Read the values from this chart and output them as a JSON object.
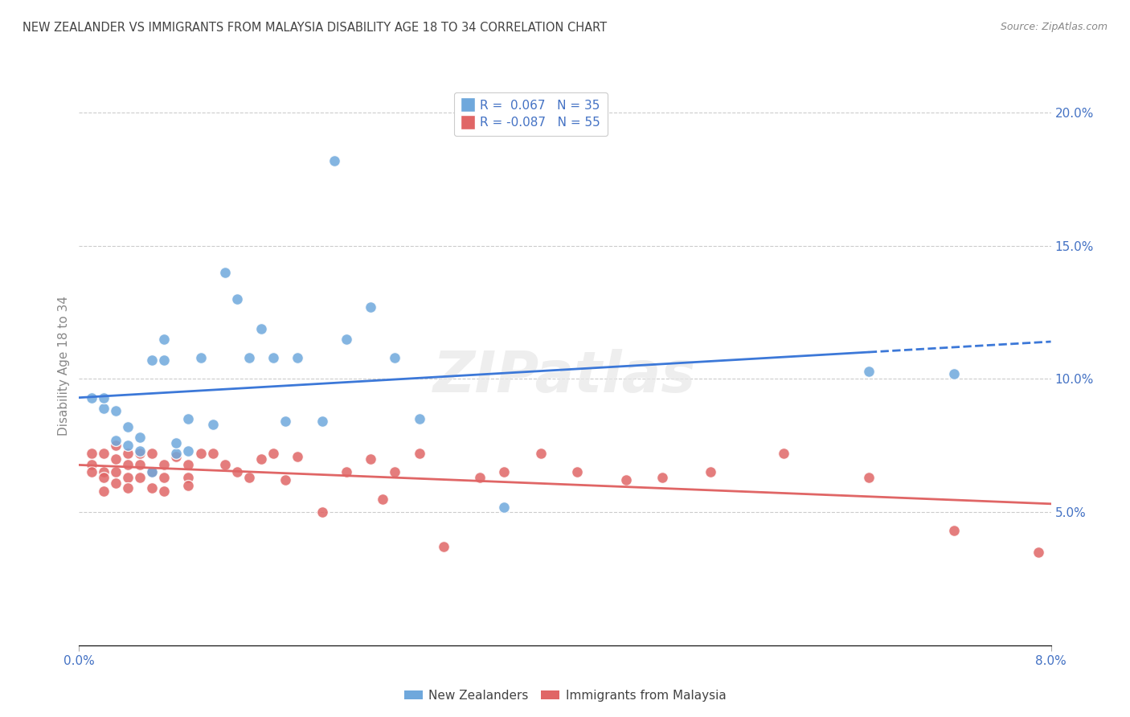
{
  "title": "NEW ZEALANDER VS IMMIGRANTS FROM MALAYSIA DISABILITY AGE 18 TO 34 CORRELATION CHART",
  "source": "Source: ZipAtlas.com",
  "ylabel": "Disability Age 18 to 34",
  "xmin": 0.0,
  "xmax": 0.08,
  "ymin": 0.0,
  "ymax": 0.21,
  "yticks": [
    0.05,
    0.1,
    0.15,
    0.2
  ],
  "ytick_labels": [
    "5.0%",
    "10.0%",
    "15.0%",
    "20.0%"
  ],
  "xtick_left_label": "0.0%",
  "xtick_right_label": "8.0%",
  "legend_r1": "R =  0.067",
  "legend_n1": "N = 35",
  "legend_r2": "R = -0.087",
  "legend_n2": "N = 55",
  "legend_label1": "New Zealanders",
  "legend_label2": "Immigrants from Malaysia",
  "color_blue": "#6fa8dc",
  "color_pink": "#e06666",
  "line_color_blue": "#3c78d8",
  "line_color_pink": "#e06666",
  "nz_x": [
    0.001,
    0.002,
    0.002,
    0.003,
    0.003,
    0.004,
    0.004,
    0.005,
    0.005,
    0.006,
    0.006,
    0.007,
    0.007,
    0.008,
    0.008,
    0.009,
    0.009,
    0.01,
    0.011,
    0.012,
    0.013,
    0.014,
    0.015,
    0.016,
    0.017,
    0.018,
    0.02,
    0.021,
    0.022,
    0.024,
    0.026,
    0.028,
    0.035,
    0.065,
    0.072
  ],
  "nz_y": [
    0.093,
    0.089,
    0.093,
    0.077,
    0.088,
    0.075,
    0.082,
    0.078,
    0.073,
    0.107,
    0.065,
    0.115,
    0.107,
    0.072,
    0.076,
    0.073,
    0.085,
    0.108,
    0.083,
    0.14,
    0.13,
    0.108,
    0.119,
    0.108,
    0.084,
    0.108,
    0.084,
    0.182,
    0.115,
    0.127,
    0.108,
    0.085,
    0.052,
    0.103,
    0.102
  ],
  "my_x": [
    0.001,
    0.001,
    0.001,
    0.002,
    0.002,
    0.002,
    0.002,
    0.003,
    0.003,
    0.003,
    0.003,
    0.004,
    0.004,
    0.004,
    0.004,
    0.005,
    0.005,
    0.005,
    0.006,
    0.006,
    0.006,
    0.007,
    0.007,
    0.007,
    0.008,
    0.009,
    0.009,
    0.009,
    0.01,
    0.011,
    0.012,
    0.013,
    0.014,
    0.015,
    0.016,
    0.017,
    0.018,
    0.02,
    0.022,
    0.024,
    0.025,
    0.026,
    0.028,
    0.03,
    0.033,
    0.035,
    0.038,
    0.041,
    0.045,
    0.048,
    0.052,
    0.058,
    0.065,
    0.072,
    0.079
  ],
  "my_y": [
    0.072,
    0.068,
    0.065,
    0.072,
    0.065,
    0.063,
    0.058,
    0.075,
    0.07,
    0.065,
    0.061,
    0.072,
    0.068,
    0.063,
    0.059,
    0.072,
    0.068,
    0.063,
    0.072,
    0.065,
    0.059,
    0.068,
    0.063,
    0.058,
    0.071,
    0.068,
    0.063,
    0.06,
    0.072,
    0.072,
    0.068,
    0.065,
    0.063,
    0.07,
    0.072,
    0.062,
    0.071,
    0.05,
    0.065,
    0.07,
    0.055,
    0.065,
    0.072,
    0.037,
    0.063,
    0.065,
    0.072,
    0.065,
    0.062,
    0.063,
    0.065,
    0.072,
    0.063,
    0.043,
    0.035
  ],
  "nz_line_solid_end": 0.065,
  "background_color": "#ffffff",
  "grid_color": "#cccccc",
  "title_color": "#434343",
  "source_color": "#888888",
  "tick_color": "#4472c4",
  "ylabel_color": "#888888"
}
